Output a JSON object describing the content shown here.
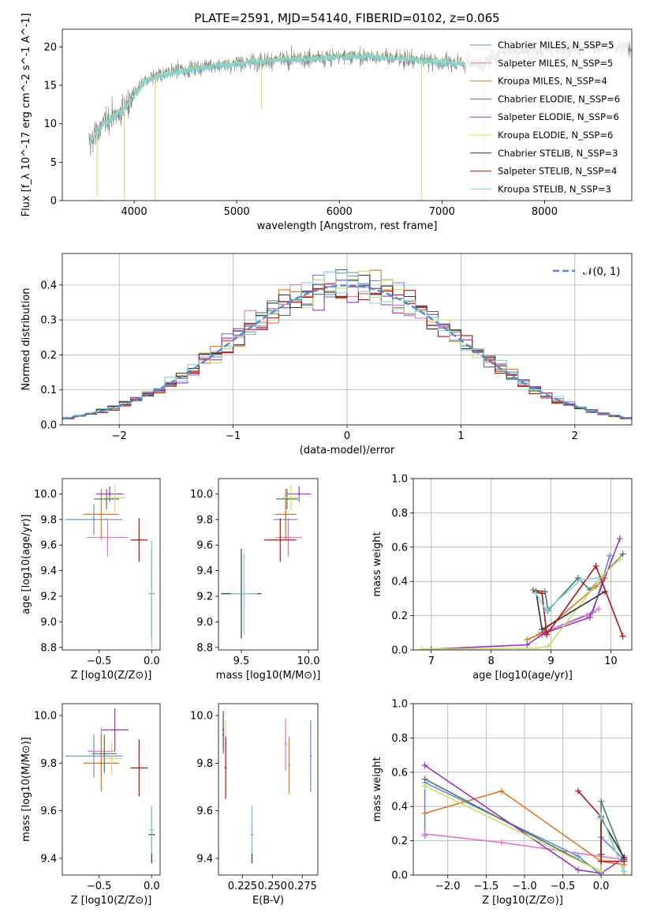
{
  "figure": {
    "title": "PLATE=2591, MJD=54140, FIBERID=0102, z=0.065"
  },
  "palette": [
    "#6688dd",
    "#e377c2",
    "#dd7722",
    "#4c7a68",
    "#9933bb",
    "#ccdd66",
    "#333333",
    "#bb1111",
    "#7fd3da"
  ],
  "chart_data": [
    {
      "id": "spectrum",
      "type": "line",
      "xlabel": "wavelength [Angstrom, rest frame]",
      "ylabel": "Flux [f_λ 10^-17 erg cm^-2 s^-1 A^-1]",
      "xlim": [
        3300,
        8850
      ],
      "ylim": [
        0,
        22.3
      ],
      "xticks": [
        4000,
        5000,
        6000,
        7000,
        8000
      ],
      "yticks": [
        0,
        5,
        10,
        15,
        20
      ],
      "legend_position": "upper right",
      "data_gray": "#808080",
      "series": [
        {
          "name": "Chabrier MILES, N_SSP=5",
          "color_index": 0
        },
        {
          "name": "Salpeter MILES, N_SSP=5",
          "color_index": 1
        },
        {
          "name": "Kroupa MILES, N_SSP=4",
          "color_index": 2
        },
        {
          "name": "Chabrier ELODIE, N_SSP=6",
          "color_index": 3
        },
        {
          "name": "Salpeter ELODIE, N_SSP=6",
          "color_index": 4
        },
        {
          "name": "Kroupa ELODIE, N_SSP=6",
          "color_index": 5
        },
        {
          "name": "Chabrier STELIB, N_SSP=3",
          "color_index": 6
        },
        {
          "name": "Salpeter STELIB, N_SSP=4",
          "color_index": 7
        },
        {
          "name": "Kroupa STELIB, N_SSP=3",
          "color_index": 8
        }
      ],
      "continuum": {
        "x": [
          3560,
          3700,
          3900,
          4100,
          4300,
          4500,
          4800,
          5000,
          5200,
          5500,
          5800,
          6000,
          6300,
          6600,
          7000,
          7400,
          7600,
          8000,
          8400,
          8850
        ],
        "y": [
          7.5,
          10.0,
          12.0,
          15.5,
          16.5,
          17.0,
          17.6,
          17.8,
          18.2,
          18.4,
          18.5,
          18.8,
          18.8,
          18.5,
          18.0,
          17.8,
          19.5,
          19.5,
          20.0,
          19.8
        ]
      },
      "model_end_x": 7420,
      "dips": [
        {
          "x": 3640,
          "y": 0.5
        },
        {
          "x": 3905,
          "y": 0.0
        },
        {
          "x": 4205,
          "y": 0.0
        },
        {
          "x": 5240,
          "y": 12.0
        },
        {
          "x": 6800,
          "y": 0.0
        },
        {
          "x": 7410,
          "y": 0.0
        }
      ]
    },
    {
      "id": "residual",
      "type": "histogram",
      "xlabel": "(data-model)/error",
      "ylabel": "Normed distribution",
      "xlim": [
        -2.5,
        2.5
      ],
      "ylim": [
        0,
        0.49
      ],
      "xticks": [
        -2,
        -1,
        0,
        1,
        2
      ],
      "yticks": [
        0.0,
        0.1,
        0.2,
        0.3,
        0.4
      ],
      "grid": true,
      "bin_width": 0.1,
      "reference_curve": {
        "name": "𝒩(0, 1)",
        "style": "dashed",
        "color": "#5588cc"
      },
      "legend_position": "upper right"
    },
    {
      "id": "age_vs_Z",
      "type": "errorbar",
      "xlabel": "Z [log10(Z/Z⊙)]",
      "ylabel": "age  [log10(age/yr)]",
      "xlim": [
        -0.85,
        0.08
      ],
      "ylim": [
        8.78,
        10.12
      ],
      "xticks": [
        -0.5,
        0.0
      ],
      "yticks": [
        8.8,
        9.0,
        9.2,
        9.4,
        9.6,
        9.8,
        10.0
      ],
      "points": [
        {
          "c": 0,
          "x": -0.55,
          "y": 9.8,
          "xerr": 0.27,
          "yerr": 0.12
        },
        {
          "c": 1,
          "x": -0.42,
          "y": 9.66,
          "xerr": 0.2,
          "yerr": 0.15
        },
        {
          "c": 2,
          "x": -0.48,
          "y": 9.84,
          "xerr": 0.17,
          "yerr": 0.2
        },
        {
          "c": 3,
          "x": -0.43,
          "y": 9.96,
          "xerr": 0.12,
          "yerr": 0.08
        },
        {
          "c": 4,
          "x": -0.4,
          "y": 10.0,
          "xerr": 0.13,
          "yerr": 0.06
        },
        {
          "c": 5,
          "x": -0.35,
          "y": 9.97,
          "xerr": 0.1,
          "yerr": 0.1
        },
        {
          "c": 6,
          "x": 0.0,
          "y": 9.22,
          "xerr": 0.03,
          "yerr": 0.35
        },
        {
          "c": 7,
          "x": -0.12,
          "y": 9.64,
          "xerr": 0.08,
          "yerr": 0.17
        },
        {
          "c": 8,
          "x": 0.0,
          "y": 9.22,
          "xerr": 0.03,
          "yerr": 0.42
        }
      ]
    },
    {
      "id": "age_vs_mass",
      "type": "errorbar",
      "xlabel": "mass [log10(M/M⊙)]",
      "ylabel": "",
      "xlim": [
        9.33,
        10.07
      ],
      "ylim": [
        8.78,
        10.12
      ],
      "xticks": [
        9.5,
        10.0
      ],
      "yticks": [
        8.8,
        9.0,
        9.2,
        9.4,
        9.6,
        9.8,
        10.0
      ],
      "points": [
        {
          "c": 0,
          "x": 9.83,
          "y": 9.8,
          "xerr": 0.09,
          "yerr": 0.12
        },
        {
          "c": 1,
          "x": 9.85,
          "y": 9.66,
          "xerr": 0.1,
          "yerr": 0.15
        },
        {
          "c": 2,
          "x": 9.83,
          "y": 9.84,
          "xerr": 0.08,
          "yerr": 0.2
        },
        {
          "c": 3,
          "x": 9.84,
          "y": 9.96,
          "xerr": 0.08,
          "yerr": 0.08
        },
        {
          "c": 4,
          "x": 9.93,
          "y": 10.0,
          "xerr": 0.09,
          "yerr": 0.06
        },
        {
          "c": 5,
          "x": 9.87,
          "y": 9.97,
          "xerr": 0.07,
          "yerr": 0.1
        },
        {
          "c": 6,
          "x": 9.5,
          "y": 9.22,
          "xerr": 0.15,
          "yerr": 0.35
        },
        {
          "c": 7,
          "x": 9.79,
          "y": 9.64,
          "xerr": 0.12,
          "yerr": 0.17
        },
        {
          "c": 8,
          "x": 9.52,
          "y": 9.22,
          "xerr": 0.1,
          "yerr": 0.32
        }
      ]
    },
    {
      "id": "massweight_vs_age",
      "type": "line",
      "xlabel": "age  [log10(age/yr)]",
      "ylabel": "mass weight",
      "xlim": [
        6.7,
        10.35
      ],
      "ylim": [
        0,
        1.0
      ],
      "xticks": [
        7,
        8,
        9,
        10
      ],
      "yticks": [
        0.0,
        0.2,
        0.4,
        0.6,
        0.8,
        1.0
      ],
      "grid": true,
      "series": [
        {
          "c": 0,
          "x": [
            8.85,
            9.0,
            9.7,
            9.98
          ],
          "y": [
            0.1,
            0.12,
            0.22,
            0.55
          ]
        },
        {
          "c": 1,
          "x": [
            8.85,
            9.0,
            9.6,
            9.8
          ],
          "y": [
            0.09,
            0.12,
            0.2,
            0.24
          ]
        },
        {
          "c": 2,
          "x": [
            8.6,
            8.8,
            9.75,
            9.9
          ],
          "y": [
            0.06,
            0.09,
            0.37,
            0.42
          ]
        },
        {
          "c": 3,
          "x": [
            8.7,
            8.9,
            8.95,
            9.45,
            9.65,
            10.2
          ],
          "y": [
            0.35,
            0.34,
            0.23,
            0.42,
            0.35,
            0.56
          ]
        },
        {
          "c": 4,
          "x": [
            7.0,
            8.6,
            8.9,
            9.65,
            10.15
          ],
          "y": [
            0.005,
            0.03,
            0.1,
            0.19,
            0.65
          ]
        },
        {
          "c": 5,
          "x": [
            6.85,
            8.75,
            8.95,
            9.85,
            10.15
          ],
          "y": [
            0.005,
            0.01,
            0.02,
            0.43,
            0.53
          ]
        },
        {
          "c": 6,
          "x": [
            8.75,
            8.85,
            9.9
          ],
          "y": [
            0.34,
            0.12,
            0.34
          ]
        },
        {
          "c": 7,
          "x": [
            8.75,
            8.85,
            8.93,
            9.75,
            10.2
          ],
          "y": [
            0.34,
            0.33,
            0.09,
            0.49,
            0.08
          ]
        },
        {
          "c": 8,
          "x": [
            8.75,
            8.92,
            9.5,
            9.8
          ],
          "y": [
            0.33,
            0.23,
            0.41,
            0.42
          ]
        }
      ]
    },
    {
      "id": "mass_vs_Z",
      "type": "errorbar",
      "xlabel": "Z [log10(Z/Z⊙)]",
      "ylabel": "mass [log10(M/M⊙)]",
      "xlim": [
        -0.85,
        0.08
      ],
      "ylim": [
        9.33,
        10.05
      ],
      "xticks": [
        -0.5,
        0.0
      ],
      "yticks": [
        9.4,
        9.6,
        9.8,
        10.0
      ],
      "points": [
        {
          "c": 0,
          "x": -0.55,
          "y": 9.83,
          "xerr": 0.27,
          "yerr": 0.09
        },
        {
          "c": 1,
          "x": -0.48,
          "y": 9.85,
          "xerr": 0.13,
          "yerr": 0.1
        },
        {
          "c": 2,
          "x": -0.48,
          "y": 9.8,
          "xerr": 0.17,
          "yerr": 0.12
        },
        {
          "c": 3,
          "x": -0.45,
          "y": 9.84,
          "xerr": 0.12,
          "yerr": 0.08
        },
        {
          "c": 4,
          "x": -0.35,
          "y": 9.94,
          "xerr": 0.13,
          "yerr": 0.09
        },
        {
          "c": 5,
          "x": -0.38,
          "y": 9.82,
          "xerr": 0.1,
          "yerr": 0.07
        },
        {
          "c": 6,
          "x": 0.0,
          "y": 9.5,
          "xerr": 0.03,
          "yerr": 0.12
        },
        {
          "c": 7,
          "x": -0.12,
          "y": 9.78,
          "xerr": 0.08,
          "yerr": 0.12
        },
        {
          "c": 8,
          "x": 0.0,
          "y": 9.52,
          "xerr": 0.03,
          "yerr": 0.1
        }
      ]
    },
    {
      "id": "mass_vs_ebv",
      "type": "errorbar",
      "xlabel": "E(B-V)",
      "ylabel": "",
      "xlim": [
        0.205,
        0.288
      ],
      "ylim": [
        9.33,
        10.05
      ],
      "xticks": [
        0.225,
        0.25,
        0.275
      ],
      "xtick_labels": [
        "0.225",
        "0.250",
        "0.275"
      ],
      "yticks": [
        9.4,
        9.6,
        9.8,
        10.0
      ],
      "points": [
        {
          "c": 0,
          "x": 0.282,
          "y": 9.83,
          "xerr": 0,
          "yerr": 0.15
        },
        {
          "c": 1,
          "x": 0.261,
          "y": 9.88,
          "xerr": 0,
          "yerr": 0.11
        },
        {
          "c": 2,
          "x": 0.264,
          "y": 9.79,
          "xerr": 0,
          "yerr": 0.12
        },
        {
          "c": 3,
          "x": 0.209,
          "y": 9.92,
          "xerr": 0,
          "yerr": 0.08
        },
        {
          "c": 4,
          "x": 0.209,
          "y": 9.94,
          "xerr": 0,
          "yerr": 0.08
        },
        {
          "c": 5,
          "x": 0.211,
          "y": 9.91,
          "xerr": 0,
          "yerr": 0.07
        },
        {
          "c": 6,
          "x": 0.233,
          "y": 9.5,
          "xerr": 0,
          "yerr": 0.12
        },
        {
          "c": 7,
          "x": 0.211,
          "y": 9.78,
          "xerr": 0,
          "yerr": 0.13
        },
        {
          "c": 8,
          "x": 0.233,
          "y": 9.52,
          "xerr": 0,
          "yerr": 0.1
        }
      ]
    },
    {
      "id": "massweight_vs_Z",
      "type": "line",
      "xlabel": "Z [log10(Z/Z⊙)]",
      "ylabel": "mass weight",
      "xlim": [
        -2.45,
        0.4
      ],
      "ylim": [
        0,
        1.0
      ],
      "xticks": [
        -2.0,
        -1.5,
        -1.0,
        -0.5,
        0.0
      ],
      "yticks": [
        0.0,
        0.2,
        0.4,
        0.6,
        0.8,
        1.0
      ],
      "grid": true,
      "series": [
        {
          "c": 0,
          "x": [
            -2.3,
            -2.3,
            -0.3,
            0.0,
            0.0,
            0.3
          ],
          "y": [
            0.23,
            0.54,
            0.11,
            0.0,
            0.22,
            0.09
          ]
        },
        {
          "c": 1,
          "x": [
            -2.3,
            -1.3,
            0.3,
            0.3
          ],
          "y": [
            0.24,
            0.19,
            0.09,
            0.11
          ]
        },
        {
          "c": 2,
          "x": [
            -2.3,
            -1.3,
            0.0,
            0.3
          ],
          "y": [
            0.36,
            0.49,
            0.08,
            0.06
          ]
        },
        {
          "c": 3,
          "x": [
            -2.3,
            0.0,
            0.0,
            0.3
          ],
          "y": [
            0.56,
            0.02,
            0.43,
            0.09
          ]
        },
        {
          "c": 4,
          "x": [
            -2.3,
            -0.3,
            0.0,
            0.3
          ],
          "y": [
            0.64,
            0.03,
            0.01,
            0.1
          ]
        },
        {
          "c": 5,
          "x": [
            -2.3,
            0.0,
            0.0,
            0.3
          ],
          "y": [
            0.52,
            0.02,
            0.35,
            0.01
          ]
        },
        {
          "c": 6,
          "x": [
            0.0,
            0.0,
            0.3
          ],
          "y": [
            0.12,
            0.33,
            0.1
          ]
        },
        {
          "c": 7,
          "x": [
            -0.3,
            0.0,
            0.0,
            0.3
          ],
          "y": [
            0.49,
            0.34,
            0.08,
            0.08
          ]
        },
        {
          "c": 8,
          "x": [
            0.0,
            0.0,
            0.3
          ],
          "y": [
            0.33,
            0.35,
            0.02
          ]
        }
      ]
    }
  ]
}
